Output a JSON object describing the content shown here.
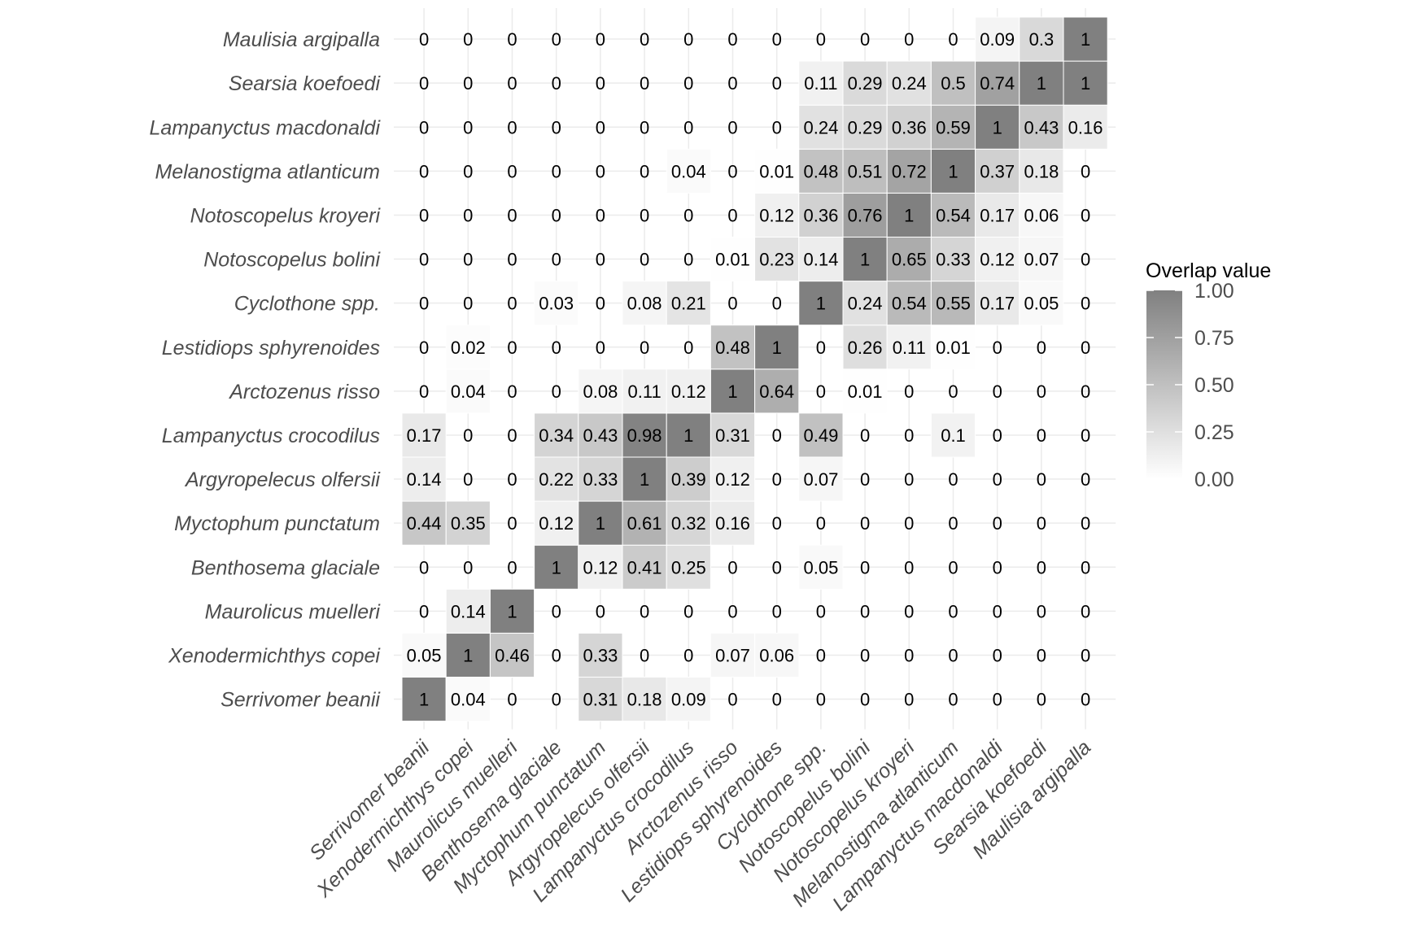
{
  "chart_data": {
    "type": "heatmap",
    "title": "",
    "xlabel": "",
    "ylabel": "",
    "species": [
      "Serrivomer beanii",
      "Xenodermichthys copei",
      "Maurolicus muelleri",
      "Benthosema glaciale",
      "Myctophum punctatum",
      "Argyropelecus olfersii",
      "Lampanyctus crocodilus",
      "Arctozenus risso",
      "Lestidiops sphyrenoides",
      "Cyclothone spp.",
      "Notoscopelus bolini",
      "Notoscopelus kroyeri",
      "Melanostigma atlanticum",
      "Lampanyctus macdonaldi",
      "Searsia koefoedi",
      "Maulisia argipalla"
    ],
    "values": [
      [
        1,
        0.04,
        0,
        0,
        0.31,
        0.18,
        0.09,
        0,
        0,
        0,
        0,
        0,
        0,
        0,
        0,
        0
      ],
      [
        0.05,
        1,
        0.46,
        0,
        0.33,
        0,
        0,
        0.07,
        0.06,
        0,
        0,
        0,
        0,
        0,
        0,
        0
      ],
      [
        0,
        0.14,
        1,
        0,
        0,
        0,
        0,
        0,
        0,
        0,
        0,
        0,
        0,
        0,
        0,
        0
      ],
      [
        0,
        0,
        0,
        1,
        0.12,
        0.41,
        0.25,
        0,
        0,
        0.05,
        0,
        0,
        0,
        0,
        0,
        0
      ],
      [
        0.44,
        0.35,
        0,
        0.12,
        1,
        0.61,
        0.32,
        0.16,
        0,
        0,
        0,
        0,
        0,
        0,
        0,
        0
      ],
      [
        0.14,
        0,
        0,
        0.22,
        0.33,
        1,
        0.39,
        0.12,
        0,
        0.07,
        0,
        0,
        0,
        0,
        0,
        0
      ],
      [
        0.17,
        0,
        0,
        0.34,
        0.43,
        0.98,
        1,
        0.31,
        0,
        0.49,
        0,
        0,
        0.1,
        0,
        0,
        0
      ],
      [
        0,
        0.04,
        0,
        0,
        0.08,
        0.11,
        0.12,
        1,
        0.64,
        0,
        0.01,
        0,
        0,
        0,
        0,
        0
      ],
      [
        0,
        0.02,
        0,
        0,
        0,
        0,
        0,
        0.48,
        1,
        0,
        0.26,
        0.11,
        0.01,
        0,
        0,
        0
      ],
      [
        0,
        0,
        0,
        0.03,
        0,
        0.08,
        0.21,
        0,
        0,
        1,
        0.24,
        0.54,
        0.55,
        0.17,
        0.05,
        0
      ],
      [
        0,
        0,
        0,
        0,
        0,
        0,
        0,
        0.01,
        0.23,
        0.14,
        1,
        0.65,
        0.33,
        0.12,
        0.07,
        0
      ],
      [
        0,
        0,
        0,
        0,
        0,
        0,
        0,
        0,
        0.12,
        0.36,
        0.76,
        1,
        0.54,
        0.17,
        0.06,
        0
      ],
      [
        0,
        0,
        0,
        0,
        0,
        0,
        0.04,
        0,
        0.01,
        0.48,
        0.51,
        0.72,
        1,
        0.37,
        0.18,
        0
      ],
      [
        0,
        0,
        0,
        0,
        0,
        0,
        0,
        0,
        0,
        0.24,
        0.29,
        0.36,
        0.59,
        1,
        0.43,
        0.16
      ],
      [
        0,
        0,
        0,
        0,
        0,
        0,
        0,
        0,
        0,
        0.11,
        0.29,
        0.24,
        0.5,
        0.74,
        1,
        1
      ],
      [
        0,
        0,
        0,
        0,
        0,
        0,
        0,
        0,
        0,
        0,
        0,
        0,
        0,
        0.09,
        0.3,
        1
      ]
    ],
    "value_range": [
      0,
      1
    ],
    "legend": {
      "title": "Overlap value",
      "ticks": [
        "0.00",
        "0.25",
        "0.50",
        "0.75",
        "1.00"
      ],
      "position": "right"
    },
    "colors": {
      "low": "#ffffff",
      "high": "#808080"
    },
    "grid": true
  }
}
